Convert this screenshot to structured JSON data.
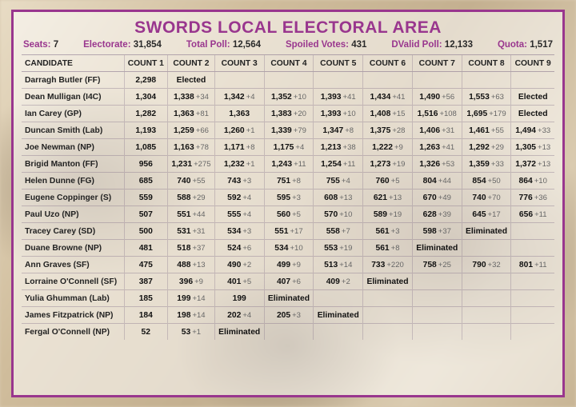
{
  "title": "SWORDS LOCAL ELECTORAL AREA",
  "summary": {
    "seats_label": "Seats:",
    "seats": "7",
    "electorate_label": "Electorate:",
    "electorate": "31,854",
    "totalpoll_label": "Total Poll:",
    "totalpoll": "12,564",
    "spoiled_label": "Spoiled Votes:",
    "spoiled": "431",
    "dvalid_label": "DValid Poll:",
    "dvalid": "12,133",
    "quota_label": "Quota:",
    "quota": "1,517"
  },
  "headers": [
    "CANDIDATE",
    "COUNT 1",
    "COUNT 2",
    "COUNT 3",
    "COUNT 4",
    "COUNT 5",
    "COUNT 6",
    "COUNT 7",
    "COUNT 8",
    "COUNT 9"
  ],
  "rows": [
    {
      "name": "Darragh Butler (FF)",
      "cells": [
        {
          "v": "2,298"
        },
        {
          "s": "Elected"
        },
        {},
        {},
        {},
        {},
        {},
        {},
        {}
      ]
    },
    {
      "name": "Dean Mulligan (I4C)",
      "cells": [
        {
          "v": "1,304"
        },
        {
          "v": "1,338",
          "d": "+34"
        },
        {
          "v": "1,342",
          "d": "+4"
        },
        {
          "v": "1,352",
          "d": "+10"
        },
        {
          "v": "1,393",
          "d": "+41"
        },
        {
          "v": "1,434",
          "d": "+41"
        },
        {
          "v": "1,490",
          "d": "+56"
        },
        {
          "v": "1,553",
          "d": "+63"
        },
        {
          "s": "Elected"
        }
      ]
    },
    {
      "name": "Ian Carey (GP)",
      "cells": [
        {
          "v": "1,282"
        },
        {
          "v": "1,363",
          "d": "+81"
        },
        {
          "v": "1,363"
        },
        {
          "v": "1,383",
          "d": "+20"
        },
        {
          "v": "1,393",
          "d": "+10"
        },
        {
          "v": "1,408",
          "d": "+15"
        },
        {
          "v": "1,516",
          "d": "+108"
        },
        {
          "v": "1,695",
          "d": "+179"
        },
        {
          "s": "Elected"
        }
      ]
    },
    {
      "name": "Duncan Smith (Lab)",
      "cells": [
        {
          "v": "1,193"
        },
        {
          "v": "1,259",
          "d": "+66"
        },
        {
          "v": "1,260",
          "d": "+1"
        },
        {
          "v": "1,339",
          "d": "+79"
        },
        {
          "v": "1,347",
          "d": "+8"
        },
        {
          "v": "1,375",
          "d": "+28"
        },
        {
          "v": "1,406",
          "d": "+31"
        },
        {
          "v": "1,461",
          "d": "+55"
        },
        {
          "v": "1,494",
          "d": "+33"
        }
      ]
    },
    {
      "name": "Joe Newman (NP)",
      "cells": [
        {
          "v": "1,085"
        },
        {
          "v": "1,163",
          "d": "+78"
        },
        {
          "v": "1,171",
          "d": "+8"
        },
        {
          "v": "1,175",
          "d": "+4"
        },
        {
          "v": "1,213",
          "d": "+38"
        },
        {
          "v": "1,222",
          "d": "+9"
        },
        {
          "v": "1,263",
          "d": "+41"
        },
        {
          "v": "1,292",
          "d": "+29"
        },
        {
          "v": "1,305",
          "d": "+13"
        }
      ]
    },
    {
      "name": "Brigid Manton (FF)",
      "cells": [
        {
          "v": "956"
        },
        {
          "v": "1,231",
          "d": "+275"
        },
        {
          "v": "1,232",
          "d": "+1"
        },
        {
          "v": "1,243",
          "d": "+11"
        },
        {
          "v": "1,254",
          "d": "+11"
        },
        {
          "v": "1,273",
          "d": "+19"
        },
        {
          "v": "1,326",
          "d": "+53"
        },
        {
          "v": "1,359",
          "d": "+33"
        },
        {
          "v": "1,372",
          "d": "+13"
        }
      ]
    },
    {
      "name": "Helen Dunne (FG)",
      "cells": [
        {
          "v": "685"
        },
        {
          "v": "740",
          "d": "+55"
        },
        {
          "v": "743",
          "d": "+3"
        },
        {
          "v": "751",
          "d": "+8"
        },
        {
          "v": "755",
          "d": "+4"
        },
        {
          "v": "760",
          "d": "+5"
        },
        {
          "v": "804",
          "d": "+44"
        },
        {
          "v": "854",
          "d": "+50"
        },
        {
          "v": "864",
          "d": "+10"
        }
      ]
    },
    {
      "name": "Eugene Coppinger (S)",
      "cells": [
        {
          "v": "559"
        },
        {
          "v": "588",
          "d": "+29"
        },
        {
          "v": "592",
          "d": "+4"
        },
        {
          "v": "595",
          "d": "+3"
        },
        {
          "v": "608",
          "d": "+13"
        },
        {
          "v": "621",
          "d": "+13"
        },
        {
          "v": "670",
          "d": "+49"
        },
        {
          "v": "740",
          "d": "+70"
        },
        {
          "v": "776",
          "d": "+36"
        }
      ]
    },
    {
      "name": "Paul Uzo (NP)",
      "cells": [
        {
          "v": "507"
        },
        {
          "v": "551",
          "d": "+44"
        },
        {
          "v": "555",
          "d": "+4"
        },
        {
          "v": "560",
          "d": "+5"
        },
        {
          "v": "570",
          "d": "+10"
        },
        {
          "v": "589",
          "d": "+19"
        },
        {
          "v": "628",
          "d": "+39"
        },
        {
          "v": "645",
          "d": "+17"
        },
        {
          "v": "656",
          "d": "+11"
        }
      ]
    },
    {
      "name": "Tracey Carey (SD)",
      "cells": [
        {
          "v": "500"
        },
        {
          "v": "531",
          "d": "+31"
        },
        {
          "v": "534",
          "d": "+3"
        },
        {
          "v": "551",
          "d": "+17"
        },
        {
          "v": "558",
          "d": "+7"
        },
        {
          "v": "561",
          "d": "+3"
        },
        {
          "v": "598",
          "d": "+37"
        },
        {
          "s": "Eliminated"
        },
        {}
      ]
    },
    {
      "name": "Duane Browne (NP)",
      "cells": [
        {
          "v": "481"
        },
        {
          "v": "518",
          "d": "+37"
        },
        {
          "v": "524",
          "d": "+6"
        },
        {
          "v": "534",
          "d": "+10"
        },
        {
          "v": "553",
          "d": "+19"
        },
        {
          "v": "561",
          "d": "+8"
        },
        {
          "s": "Eliminated"
        },
        {},
        {}
      ]
    },
    {
      "name": "Ann Graves (SF)",
      "cells": [
        {
          "v": "475"
        },
        {
          "v": "488",
          "d": "+13"
        },
        {
          "v": "490",
          "d": "+2"
        },
        {
          "v": "499",
          "d": "+9"
        },
        {
          "v": "513",
          "d": "+14"
        },
        {
          "v": "733",
          "d": "+220"
        },
        {
          "v": "758",
          "d": "+25"
        },
        {
          "v": "790",
          "d": "+32"
        },
        {
          "v": "801",
          "d": "+11"
        }
      ]
    },
    {
      "name": "Lorraine O'Connell (SF)",
      "cells": [
        {
          "v": "387"
        },
        {
          "v": "396",
          "d": "+9"
        },
        {
          "v": "401",
          "d": "+5"
        },
        {
          "v": "407",
          "d": "+6"
        },
        {
          "v": "409",
          "d": "+2"
        },
        {
          "s": "Eliminated"
        },
        {},
        {},
        {}
      ]
    },
    {
      "name": "Yulia Ghumman (Lab)",
      "cells": [
        {
          "v": "185"
        },
        {
          "v": "199",
          "d": "+14"
        },
        {
          "v": "199"
        },
        {
          "s": "Eliminated"
        },
        {},
        {},
        {},
        {},
        {}
      ]
    },
    {
      "name": "James Fitzpatrick (NP)",
      "cells": [
        {
          "v": "184"
        },
        {
          "v": "198",
          "d": "+14"
        },
        {
          "v": "202",
          "d": "+4"
        },
        {
          "v": "205",
          "d": "+3"
        },
        {
          "s": "Eliminated"
        },
        {},
        {},
        {},
        {}
      ]
    },
    {
      "name": "Fergal O'Connell (NP)",
      "cells": [
        {
          "v": "52"
        },
        {
          "v": "53",
          "d": "+1"
        },
        {
          "s": "Eliminated"
        },
        {},
        {},
        {},
        {},
        {},
        {}
      ]
    }
  ]
}
